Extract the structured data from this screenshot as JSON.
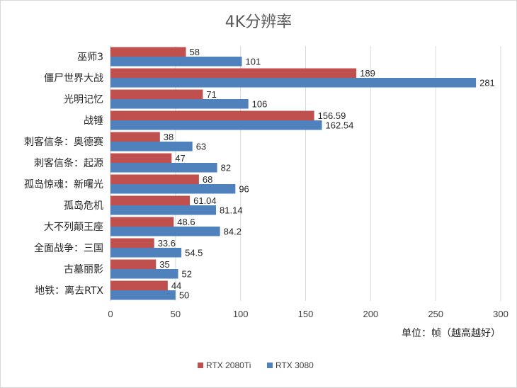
{
  "chart_data": {
    "type": "bar",
    "orientation": "horizontal",
    "title": "4K分辨率",
    "xlabel": "单位：帧（越高越好）",
    "ylabel": "",
    "xlim": [
      0,
      300
    ],
    "xticks": [
      "0",
      "50",
      "100",
      "150",
      "200",
      "250",
      "300"
    ],
    "grid": true,
    "legend_position": "bottom",
    "categories": [
      "巫师3",
      "僵尸世界大战",
      "光明记忆",
      "战锤",
      "刺客信条：奥德赛",
      "刺客信条：起源",
      "孤岛惊魂：新曙光",
      "孤岛危机",
      "大不列颠王座",
      "全面战争：三国",
      "古墓丽影",
      "地铁：离去RTX"
    ],
    "series": [
      {
        "name": "RTX 2080Ti",
        "color": "#c0504d",
        "values": [
          58,
          189,
          71,
          156.59,
          38,
          47,
          68,
          61.04,
          48.6,
          33.6,
          35,
          44
        ],
        "labels": [
          "58",
          "189",
          "71",
          "156.59",
          "38",
          "47",
          "68",
          "61.04",
          "48.6",
          "33.6",
          "35",
          "44"
        ]
      },
      {
        "name": "RTX 3080",
        "color": "#4f81bd",
        "values": [
          101,
          281,
          106,
          162.54,
          63,
          82,
          96,
          81.14,
          84.2,
          54.5,
          52,
          50
        ],
        "labels": [
          "101",
          "281",
          "106",
          "162.54",
          "63",
          "82",
          "96",
          "81.14",
          "84.2",
          "54.5",
          "52",
          "50"
        ]
      }
    ]
  }
}
